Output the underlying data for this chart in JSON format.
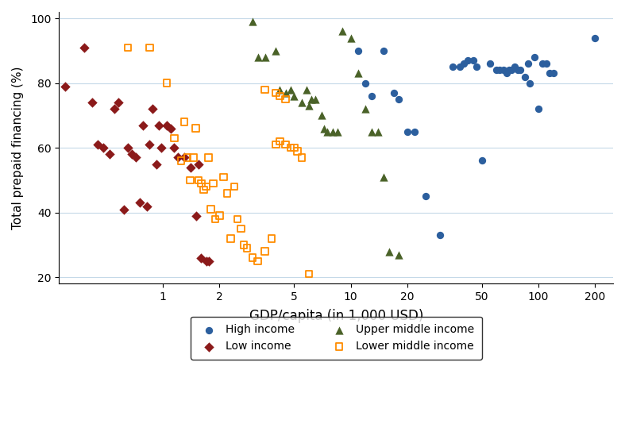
{
  "high_income": {
    "x": [
      11,
      12,
      13,
      15,
      17,
      18,
      20,
      22,
      25,
      30,
      35,
      38,
      40,
      42,
      45,
      47,
      50,
      55,
      60,
      62,
      65,
      68,
      70,
      72,
      75,
      78,
      80,
      85,
      88,
      90,
      95,
      100,
      105,
      110,
      115,
      120,
      200
    ],
    "y": [
      90,
      80,
      76,
      90,
      77,
      75,
      65,
      65,
      45,
      33,
      85,
      85,
      86,
      87,
      87,
      85,
      56,
      86,
      84,
      84,
      84,
      83,
      84,
      84,
      85,
      84,
      84,
      82,
      86,
      80,
      88,
      72,
      86,
      86,
      83,
      83,
      94
    ],
    "color": "#2c5f9e",
    "marker": "o",
    "label": "High income",
    "size": 45
  },
  "low_income": {
    "x": [
      0.3,
      0.38,
      0.42,
      0.45,
      0.48,
      0.52,
      0.55,
      0.58,
      0.62,
      0.65,
      0.68,
      0.72,
      0.75,
      0.78,
      0.82,
      0.85,
      0.88,
      0.92,
      0.95,
      0.98,
      1.05,
      1.1,
      1.15,
      1.2,
      1.3,
      1.4,
      1.5,
      1.55,
      1.6,
      1.7,
      1.75
    ],
    "y": [
      79,
      91,
      74,
      61,
      60,
      58,
      72,
      74,
      41,
      60,
      58,
      57,
      43,
      67,
      42,
      61,
      72,
      55,
      67,
      60,
      67,
      66,
      60,
      57,
      57,
      54,
      39,
      55,
      26,
      25,
      25
    ],
    "color": "#8b1a1a",
    "marker": "D",
    "label": "Low income",
    "size": 40
  },
  "upper_middle_income": {
    "x": [
      3.0,
      3.2,
      3.5,
      4.0,
      4.2,
      4.5,
      4.8,
      5.0,
      5.5,
      5.8,
      6.0,
      6.2,
      6.5,
      7.0,
      7.2,
      7.5,
      8.0,
      8.5,
      9.0,
      10.0,
      11.0,
      12.0,
      13.0,
      14.0,
      15.0,
      16.0,
      18.0
    ],
    "y": [
      99,
      88,
      88,
      90,
      78,
      77,
      78,
      76,
      74,
      78,
      73,
      75,
      75,
      70,
      66,
      65,
      65,
      65,
      96,
      94,
      83,
      72,
      65,
      65,
      51,
      28,
      27
    ],
    "color": "#4a6228",
    "marker": "^",
    "label": "Upper middle income",
    "size": 55
  },
  "lower_middle_income": {
    "x": [
      0.65,
      0.85,
      1.05,
      1.15,
      1.25,
      1.3,
      1.35,
      1.4,
      1.45,
      1.5,
      1.55,
      1.6,
      1.65,
      1.7,
      1.75,
      1.8,
      1.85,
      1.9,
      2.0,
      2.1,
      2.2,
      2.3,
      2.4,
      2.5,
      2.6,
      2.7,
      2.8,
      3.0,
      3.2,
      3.5,
      3.8,
      4.0,
      4.2,
      4.5,
      4.8,
      5.0,
      5.2,
      5.5,
      6.0,
      3.5,
      4.0,
      4.2,
      4.5
    ],
    "y": [
      91,
      91,
      80,
      63,
      56,
      68,
      57,
      50,
      57,
      66,
      50,
      49,
      47,
      48,
      57,
      41,
      49,
      38,
      39,
      51,
      46,
      32,
      48,
      38,
      35,
      30,
      29,
      26,
      25,
      28,
      32,
      61,
      62,
      61,
      60,
      60,
      59,
      57,
      21,
      78,
      77,
      76,
      75
    ],
    "color": "#ff8c00",
    "marker": "s",
    "label": "Lower middle income",
    "size": 38
  },
  "xlim_log": [
    -0.6,
    2.38
  ],
  "ylim": [
    18,
    102
  ],
  "xticks": [
    1,
    2,
    5,
    10,
    20,
    50,
    100,
    200
  ],
  "yticks": [
    20,
    40,
    60,
    80,
    100
  ],
  "xlabel": "GDP/capita (in 1,000 USD)",
  "ylabel": "Total prepaid financing (%)",
  "grid_color": "#c5d9e8",
  "bg_color": "#ffffff",
  "legend_order": [
    0,
    1,
    2,
    3
  ],
  "legend_labels": [
    "High income",
    "Low income",
    "Upper middle income",
    "Lower middle income"
  ]
}
